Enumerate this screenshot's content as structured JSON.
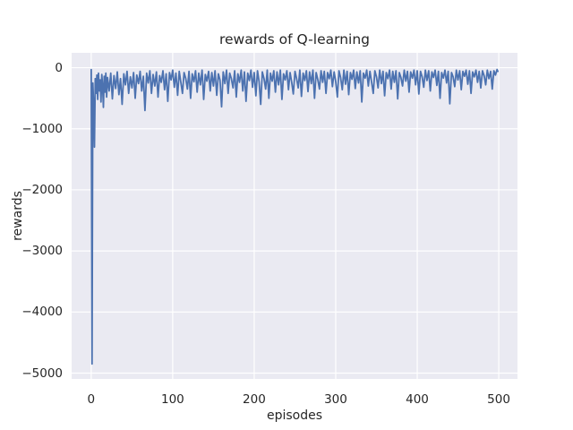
{
  "chart_data": {
    "type": "line",
    "title": "rewards of Q-learning",
    "xlabel": "episodes",
    "ylabel": "rewards",
    "xlim": [
      -24,
      523
    ],
    "ylim": [
      -5095,
      243
    ],
    "grid": true,
    "legend": null,
    "xticks": {
      "values": [
        0,
        100,
        200,
        300,
        400,
        500
      ],
      "labels": [
        "0",
        "100",
        "200",
        "300",
        "400",
        "500"
      ]
    },
    "yticks": {
      "values": [
        0,
        -1000,
        -2000,
        -3000,
        -4000,
        -5000
      ],
      "labels": [
        "0",
        "−1000",
        "−2000",
        "−3000",
        "−4000",
        "−5000"
      ]
    },
    "style": {
      "plot_bg": "#EAEAF2",
      "grid_color": "#FFFFFF",
      "line_color": "#4C72B0",
      "text_color": "#262626"
    },
    "series": [
      {
        "name": "rewards",
        "points": [
          [
            0,
            -30
          ],
          [
            1,
            -4850
          ],
          [
            2,
            -250
          ],
          [
            3,
            -600
          ],
          [
            4,
            -1300
          ],
          [
            5,
            -180
          ],
          [
            6,
            -420
          ],
          [
            7,
            -120
          ],
          [
            8,
            -520
          ],
          [
            9,
            -90
          ],
          [
            10,
            -380
          ],
          [
            11,
            -200
          ],
          [
            12,
            -560
          ],
          [
            13,
            -110
          ],
          [
            14,
            -300
          ],
          [
            15,
            -650
          ],
          [
            16,
            -140
          ],
          [
            17,
            -400
          ],
          [
            18,
            -90
          ],
          [
            19,
            -480
          ],
          [
            20,
            -160
          ],
          [
            22,
            -380
          ],
          [
            24,
            -90
          ],
          [
            26,
            -510
          ],
          [
            28,
            -130
          ],
          [
            30,
            -340
          ],
          [
            32,
            -70
          ],
          [
            34,
            -440
          ],
          [
            36,
            -180
          ],
          [
            38,
            -600
          ],
          [
            40,
            -100
          ],
          [
            42,
            -280
          ],
          [
            44,
            -60
          ],
          [
            46,
            -420
          ],
          [
            48,
            -150
          ],
          [
            50,
            -330
          ],
          [
            52,
            -80
          ],
          [
            54,
            -500
          ],
          [
            56,
            -120
          ],
          [
            58,
            -260
          ],
          [
            60,
            -60
          ],
          [
            62,
            -380
          ],
          [
            64,
            -140
          ],
          [
            66,
            -700
          ],
          [
            68,
            -90
          ],
          [
            70,
            -250
          ],
          [
            72,
            -50
          ],
          [
            74,
            -420
          ],
          [
            76,
            -110
          ],
          [
            78,
            -300
          ],
          [
            80,
            -70
          ],
          [
            82,
            -480
          ],
          [
            84,
            -130
          ],
          [
            86,
            -240
          ],
          [
            88,
            -50
          ],
          [
            90,
            -360
          ],
          [
            92,
            -100
          ],
          [
            94,
            -550
          ],
          [
            96,
            -80
          ],
          [
            98,
            -200
          ],
          [
            100,
            -40
          ],
          [
            102,
            -320
          ],
          [
            104,
            -90
          ],
          [
            106,
            -450
          ],
          [
            108,
            -60
          ],
          [
            110,
            -240
          ],
          [
            112,
            -420
          ],
          [
            114,
            -80
          ],
          [
            116,
            -180
          ],
          [
            118,
            -350
          ],
          [
            120,
            -60
          ],
          [
            122,
            -500
          ],
          [
            124,
            -100
          ],
          [
            126,
            -230
          ],
          [
            128,
            -50
          ],
          [
            130,
            -400
          ],
          [
            132,
            -90
          ],
          [
            134,
            -280
          ],
          [
            136,
            -40
          ],
          [
            138,
            -520
          ],
          [
            140,
            -110
          ],
          [
            142,
            -220
          ],
          [
            144,
            -60
          ],
          [
            146,
            -380
          ],
          [
            148,
            -80
          ],
          [
            150,
            -300
          ],
          [
            152,
            -50
          ],
          [
            154,
            -450
          ],
          [
            156,
            -100
          ],
          [
            158,
            -200
          ],
          [
            160,
            -640
          ],
          [
            162,
            -70
          ],
          [
            164,
            -260
          ],
          [
            166,
            -40
          ],
          [
            168,
            -420
          ],
          [
            170,
            -90
          ],
          [
            172,
            -180
          ],
          [
            174,
            -330
          ],
          [
            176,
            -50
          ],
          [
            178,
            -480
          ],
          [
            180,
            -100
          ],
          [
            182,
            -240
          ],
          [
            184,
            -40
          ],
          [
            186,
            -380
          ],
          [
            188,
            -70
          ],
          [
            190,
            -550
          ],
          [
            192,
            -90
          ],
          [
            194,
            -210
          ],
          [
            196,
            -40
          ],
          [
            198,
            -320
          ],
          [
            200,
            -80
          ],
          [
            202,
            -460
          ],
          [
            204,
            -50
          ],
          [
            206,
            -230
          ],
          [
            208,
            -600
          ],
          [
            210,
            -70
          ],
          [
            212,
            -180
          ],
          [
            214,
            -350
          ],
          [
            216,
            -40
          ],
          [
            218,
            -500
          ],
          [
            220,
            -90
          ],
          [
            222,
            -220
          ],
          [
            224,
            -50
          ],
          [
            226,
            -400
          ],
          [
            228,
            -70
          ],
          [
            230,
            -280
          ],
          [
            232,
            -40
          ],
          [
            234,
            -520
          ],
          [
            236,
            -100
          ],
          [
            238,
            -200
          ],
          [
            240,
            -50
          ],
          [
            242,
            -360
          ],
          [
            244,
            -80
          ],
          [
            246,
            -240
          ],
          [
            248,
            -430
          ],
          [
            250,
            -60
          ],
          [
            252,
            -180
          ],
          [
            254,
            -330
          ],
          [
            256,
            -40
          ],
          [
            258,
            -470
          ],
          [
            260,
            -90
          ],
          [
            262,
            -210
          ],
          [
            264,
            -50
          ],
          [
            266,
            -390
          ],
          [
            268,
            -70
          ],
          [
            270,
            -260
          ],
          [
            272,
            -40
          ],
          [
            274,
            -500
          ],
          [
            276,
            -80
          ],
          [
            278,
            -190
          ],
          [
            280,
            -350
          ],
          [
            282,
            -50
          ],
          [
            284,
            -240
          ],
          [
            286,
            -60
          ],
          [
            288,
            -420
          ],
          [
            290,
            -80
          ],
          [
            292,
            -180
          ],
          [
            294,
            -40
          ],
          [
            296,
            -310
          ],
          [
            298,
            -70
          ],
          [
            300,
            -230
          ],
          [
            302,
            -480
          ],
          [
            304,
            -50
          ],
          [
            306,
            -160
          ],
          [
            308,
            -360
          ],
          [
            310,
            -40
          ],
          [
            312,
            -270
          ],
          [
            314,
            -60
          ],
          [
            316,
            -440
          ],
          [
            318,
            -80
          ],
          [
            320,
            -190
          ],
          [
            322,
            -40
          ],
          [
            324,
            -340
          ],
          [
            326,
            -70
          ],
          [
            328,
            -250
          ],
          [
            330,
            -50
          ],
          [
            332,
            -560
          ],
          [
            334,
            -90
          ],
          [
            336,
            -170
          ],
          [
            338,
            -40
          ],
          [
            340,
            -300
          ],
          [
            342,
            -60
          ],
          [
            344,
            -230
          ],
          [
            346,
            -420
          ],
          [
            348,
            -50
          ],
          [
            350,
            -150
          ],
          [
            352,
            -330
          ],
          [
            354,
            -40
          ],
          [
            356,
            -260
          ],
          [
            358,
            -60
          ],
          [
            360,
            -460
          ],
          [
            362,
            -80
          ],
          [
            364,
            -180
          ],
          [
            366,
            -40
          ],
          [
            368,
            -350
          ],
          [
            370,
            -60
          ],
          [
            372,
            -240
          ],
          [
            374,
            -50
          ],
          [
            376,
            -510
          ],
          [
            378,
            -80
          ],
          [
            380,
            -160
          ],
          [
            382,
            -300
          ],
          [
            384,
            -40
          ],
          [
            386,
            -220
          ],
          [
            388,
            -60
          ],
          [
            390,
            -400
          ],
          [
            392,
            -70
          ],
          [
            394,
            -170
          ],
          [
            396,
            -40
          ],
          [
            398,
            -280
          ],
          [
            400,
            -50
          ],
          [
            402,
            -430
          ],
          [
            404,
            -60
          ],
          [
            406,
            -150
          ],
          [
            408,
            -320
          ],
          [
            410,
            -40
          ],
          [
            412,
            -210
          ],
          [
            414,
            -50
          ],
          [
            416,
            -380
          ],
          [
            418,
            -70
          ],
          [
            420,
            -160
          ],
          [
            422,
            -40
          ],
          [
            424,
            -290
          ],
          [
            426,
            -60
          ],
          [
            428,
            -500
          ],
          [
            430,
            -80
          ],
          [
            432,
            -170
          ],
          [
            434,
            -40
          ],
          [
            436,
            -250
          ],
          [
            438,
            -60
          ],
          [
            440,
            -590
          ],
          [
            442,
            -80
          ],
          [
            444,
            -150
          ],
          [
            446,
            -310
          ],
          [
            448,
            -40
          ],
          [
            450,
            -200
          ],
          [
            452,
            -50
          ],
          [
            454,
            -360
          ],
          [
            456,
            -60
          ],
          [
            458,
            -140
          ],
          [
            460,
            -40
          ],
          [
            462,
            -270
          ],
          [
            464,
            -50
          ],
          [
            466,
            -420
          ],
          [
            468,
            -70
          ],
          [
            470,
            -150
          ],
          [
            472,
            -40
          ],
          [
            474,
            -240
          ],
          [
            476,
            -60
          ],
          [
            478,
            -330
          ],
          [
            480,
            -50
          ],
          [
            482,
            -130
          ],
          [
            484,
            -280
          ],
          [
            486,
            -40
          ],
          [
            488,
            -180
          ],
          [
            490,
            -60
          ],
          [
            492,
            -350
          ],
          [
            494,
            -50
          ],
          [
            496,
            -120
          ],
          [
            498,
            -30
          ],
          [
            499,
            -60
          ]
        ]
      }
    ]
  }
}
